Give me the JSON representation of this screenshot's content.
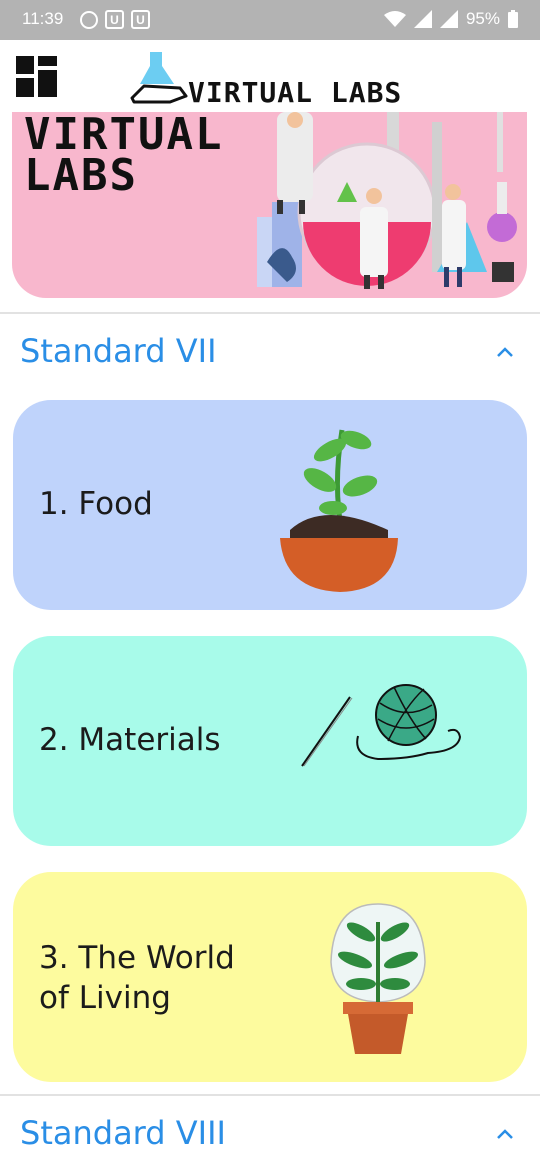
{
  "status_bar": {
    "time": "11:39",
    "battery": "95%"
  },
  "header": {
    "logo_text": "VIRTUAL LABS"
  },
  "banner": {
    "title": "VIRTUAL\nLABS"
  },
  "sections": [
    {
      "title": "Standard VII",
      "topics": [
        {
          "label": "1. Food",
          "color": "#bfd3fb"
        },
        {
          "label": "2. Materials",
          "color": "#a8fbea"
        },
        {
          "label": "3. The World\nof Living",
          "color": "#fdfb9e"
        }
      ]
    },
    {
      "title": "Standard VIII"
    }
  ],
  "colors": {
    "accent": "#2a8ee6",
    "status_bar": "#b3b3b3",
    "banner": "#f8b7cd"
  },
  "icons": [
    "whatsapp-icon",
    "notification-u-icon",
    "wifi-icon",
    "signal-icon",
    "battery-icon",
    "grid-menu-icon",
    "chevron-up-icon"
  ]
}
